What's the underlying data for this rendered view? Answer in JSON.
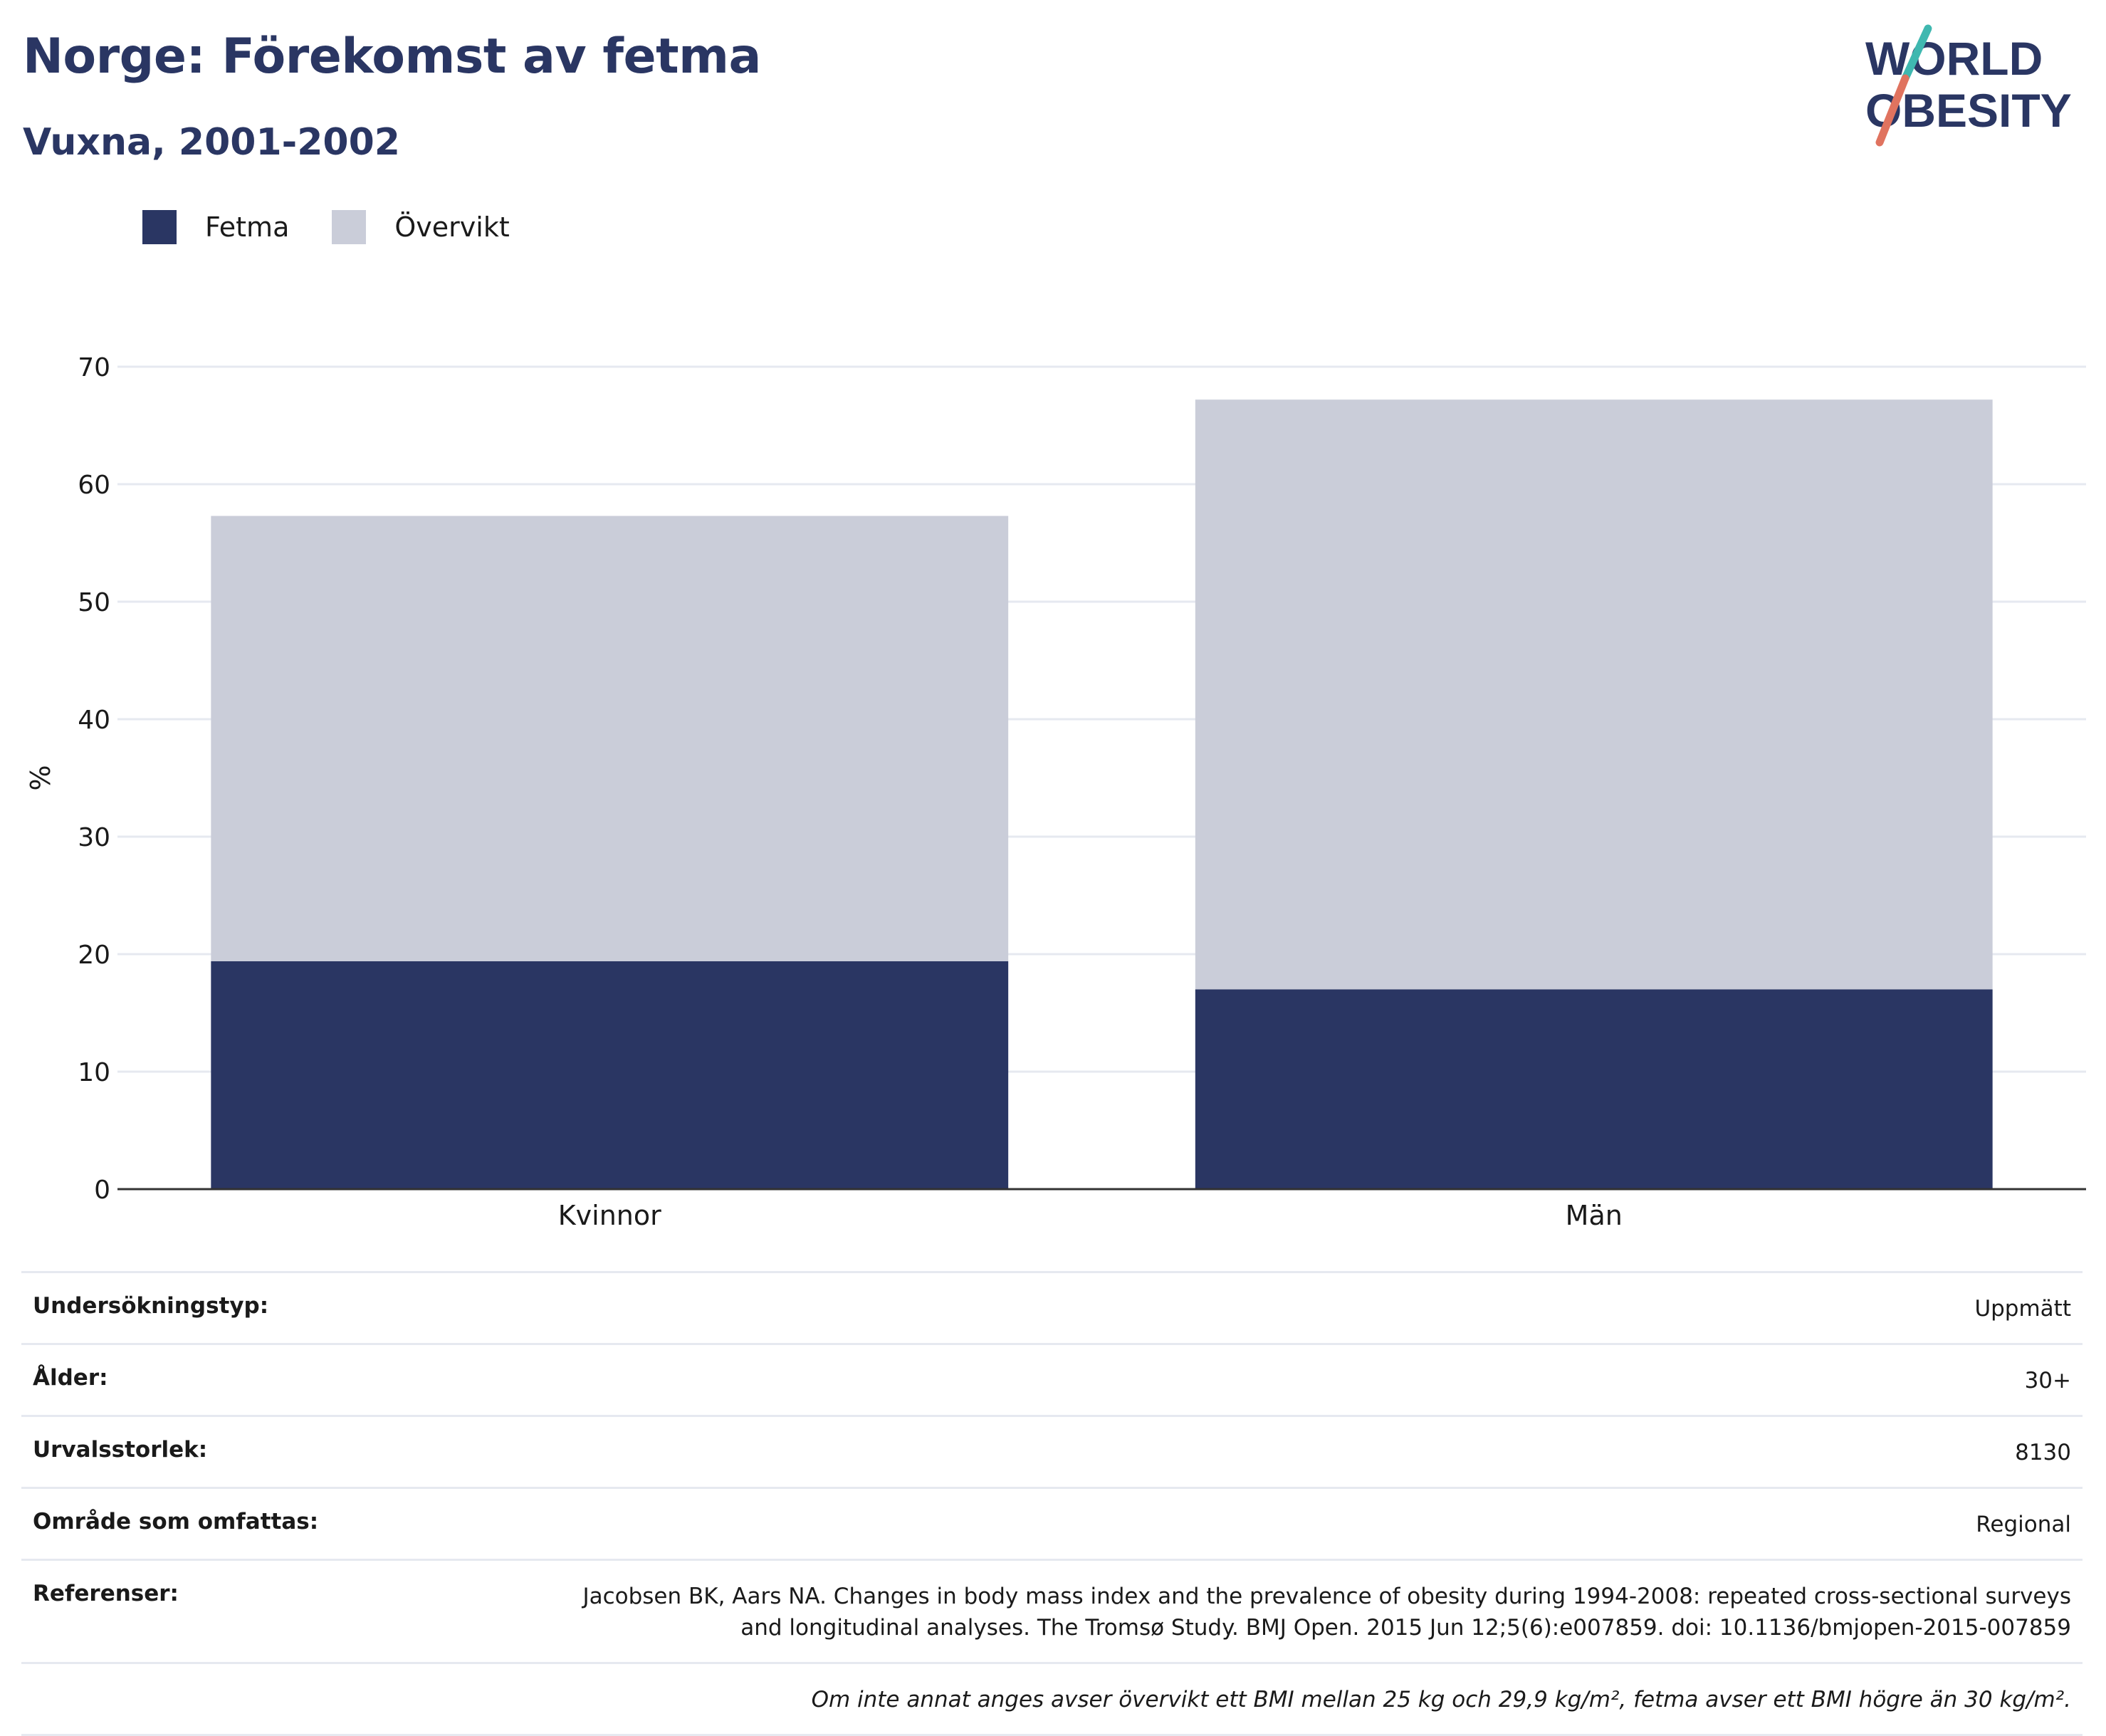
{
  "title": "Norge: Förekomst av fetma",
  "subtitle": "Vuxna, 2001-2002",
  "logo": {
    "line1": "WORLD",
    "line2": "OBESITY"
  },
  "colors": {
    "fetma": "#2a3663",
    "overvikt": "#cacdd9",
    "title": "#2a3663",
    "grid": "#e6e9f0",
    "logo_teal": "#3fb8b0",
    "logo_coral": "#e0735f"
  },
  "legend": [
    {
      "label": "Fetma",
      "color": "#2a3663"
    },
    {
      "label": "Övervikt",
      "color": "#cacdd9"
    }
  ],
  "chart_data": {
    "type": "bar",
    "stacked": true,
    "categories": [
      "Kvinnor",
      "Män"
    ],
    "series": [
      {
        "name": "Fetma",
        "values": [
          19.4,
          17.0
        ]
      },
      {
        "name": "Övervikt",
        "values": [
          37.9,
          50.2
        ]
      }
    ],
    "ylabel": "%",
    "ylim": [
      0,
      70
    ],
    "yticks": [
      0,
      10,
      20,
      30,
      40,
      50,
      60,
      70
    ],
    "grid": true,
    "legend_position": "top-left"
  },
  "meta": [
    {
      "key": "Undersökningstyp:",
      "value": "Uppmätt"
    },
    {
      "key": "Ålder:",
      "value": "30+"
    },
    {
      "key": "Urvalsstorlek:",
      "value": "8130"
    },
    {
      "key": "Område som omfattas:",
      "value": "Regional"
    },
    {
      "key": "Referenser:",
      "value_lines": [
        "Jacobsen BK, Aars NA. Changes in body mass index and the prevalence of obesity during 1994-2008: repeated cross-sectional surveys",
        "and longitudinal analyses. The Tromsø Study. BMJ Open. 2015 Jun 12;5(6):e007859. doi: 10.1136/bmjopen-2015-007859"
      ]
    }
  ],
  "note": "Om inte annat anges avser övervikt ett BMI mellan 25 kg och 29,9 kg/m², fetma avser ett BMI högre än 30 kg/m²."
}
